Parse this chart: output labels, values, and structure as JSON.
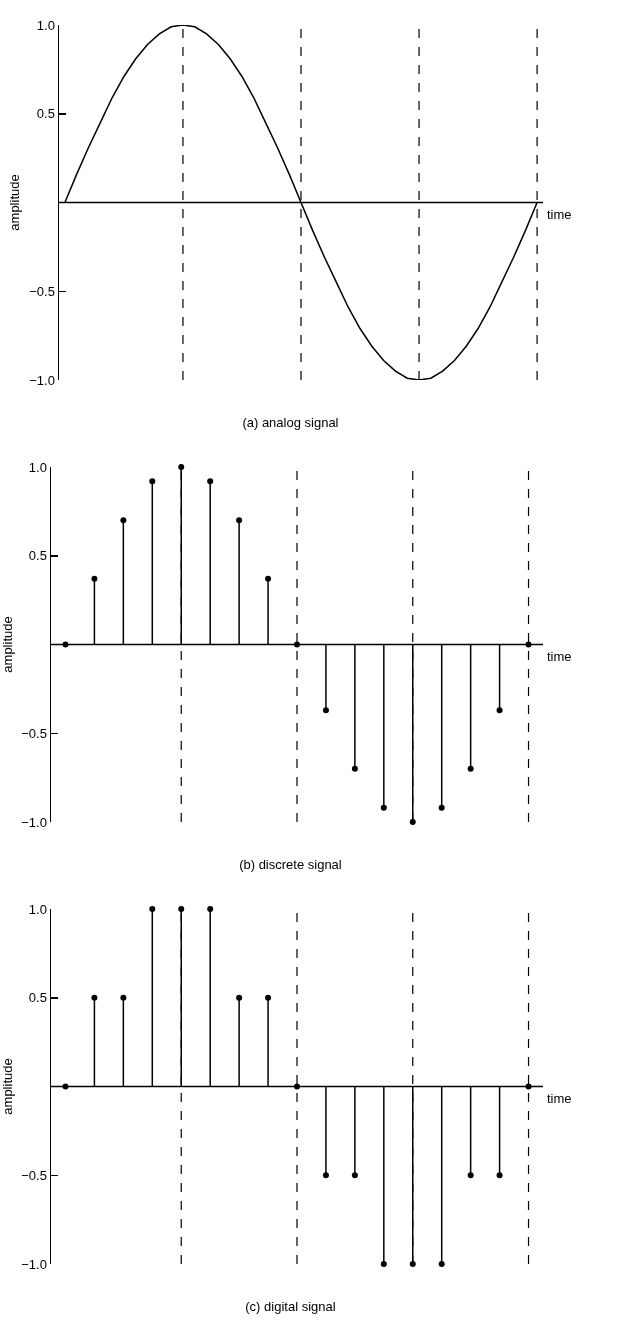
{
  "chart_data": [
    {
      "type": "line",
      "title": "(a) analog signal",
      "xlabel": "time",
      "ylabel": "amplitude",
      "color": "#000000",
      "line_style": "solid",
      "marker": "none",
      "tick_labels": "y",
      "grid": "x",
      "categories": [
        null,
        null,
        null,
        null,
        null,
        null,
        null,
        null,
        null,
        null,
        null,
        null,
        null,
        null,
        null,
        null,
        null,
        null,
        null,
        null,
        null,
        null,
        null,
        null,
        null,
        null,
        null,
        null,
        null,
        null,
        null,
        null,
        null,
        null,
        null,
        null,
        null,
        null,
        null,
        null,
        null
      ],
      "values": [
        0,
        0.16,
        0.31,
        0.45,
        0.59,
        0.71,
        0.81,
        0.89,
        0.95,
        0.99,
        1,
        0.99,
        0.95,
        0.89,
        0.81,
        0.71,
        0.59,
        0.45,
        0.31,
        0.16,
        0,
        -0.16,
        -0.31,
        -0.45,
        -0.59,
        -0.71,
        -0.81,
        -0.89,
        -0.95,
        -0.99,
        -1,
        -0.99,
        -0.95,
        -0.89,
        -0.81,
        -0.71,
        -0.59,
        -0.45,
        -0.31,
        -0.16,
        0
      ],
      "ylim": [
        -1,
        1
      ],
      "yticks": [
        {
          "value": -1,
          "label": "−1.0"
        },
        {
          "value": -0.5,
          "label": "−0.5"
        },
        {
          "value": 0.5,
          "label": "0.5"
        },
        {
          "value": 1,
          "label": "1.0"
        }
      ]
    },
    {
      "type": "lollipop",
      "title": "(b) discrete signal",
      "xlabel": "time",
      "ylabel": "amplitude",
      "color": "#000000",
      "marker": "circle",
      "tick_labels": "y",
      "grid": "x",
      "categories": [
        null,
        null,
        null,
        null,
        null,
        null,
        null,
        null,
        null,
        null,
        null,
        null,
        null,
        null,
        null,
        null,
        null
      ],
      "values": [
        0,
        0.37,
        0.7,
        0.92,
        1,
        0.92,
        0.7,
        0.37,
        0,
        -0.37,
        -0.7,
        -0.92,
        -1,
        -0.92,
        -0.7,
        -0.37,
        0
      ],
      "ylim": [
        -1,
        1
      ],
      "yticks": [
        {
          "value": -1,
          "label": "−1.0"
        },
        {
          "value": -0.5,
          "label": "−0.5"
        },
        {
          "value": 0.5,
          "label": "0.5"
        },
        {
          "value": 1,
          "label": "1.0"
        }
      ]
    },
    {
      "type": "lollipop",
      "title": "(c) digital signal",
      "xlabel": "time",
      "ylabel": "amplitude",
      "color": "#000000",
      "marker": "circle",
      "tick_labels": "y",
      "grid": "x",
      "categories": [
        null,
        null,
        null,
        null,
        null,
        null,
        null,
        null,
        null,
        null,
        null,
        null,
        null,
        null,
        null,
        null,
        null
      ],
      "values": [
        0,
        0.5,
        0.5,
        1,
        1,
        1,
        0.5,
        0.5,
        0,
        -0.5,
        -0.5,
        -1,
        -1,
        -1,
        -0.5,
        -0.5,
        0
      ],
      "ylim": [
        -1,
        1
      ],
      "yticks": [
        {
          "value": -1,
          "label": "−1.0"
        },
        {
          "value": -0.5,
          "label": "−0.5"
        },
        {
          "value": 0.5,
          "label": "0.5"
        },
        {
          "value": 1,
          "label": "1.0"
        }
      ]
    }
  ]
}
